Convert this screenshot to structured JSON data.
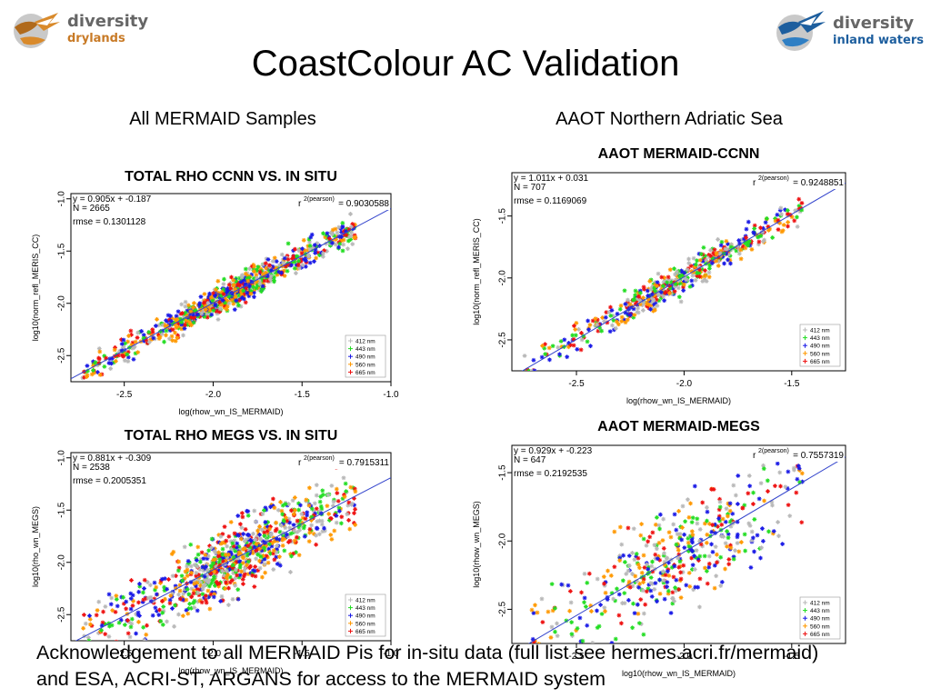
{
  "logos": {
    "left": {
      "line1": "diversity",
      "line2": "drylands"
    },
    "right": {
      "line1": "diversity",
      "line2": "inland waters"
    }
  },
  "title": "CoastColour AC Validation",
  "subheadings": {
    "left": "All MERMAID Samples",
    "right": "AAOT Northern Adriatic Sea"
  },
  "acknowledgement": {
    "line1": "Acknowledgement to all MERMAID Pis for in-situ data (full list see hermes.acri.fr/mermaid)",
    "line2": "and ESA, ACRI-ST, ARGANS for access to the MERMAID system"
  },
  "colors": {
    "412": "#b8b8b8",
    "443": "#22dd22",
    "490": "#1a1ae6",
    "560": "#ff9900",
    "665": "#ee1111",
    "fit": "#3344cc"
  },
  "chart_data": [
    {
      "type": "scatter",
      "title": "TOTAL RHO CCNN VS. IN SITU",
      "xlabel": "log(rhow_wn_IS_MERMAID)",
      "ylabel": "log10(norm_refl_MERIS_CC)",
      "xlim": [
        -2.8,
        -1.0
      ],
      "ylim": [
        -2.75,
        -0.95
      ],
      "xticks": [
        "-2.5",
        "-2.0",
        "-1.5",
        "-1.0"
      ],
      "yticks": [
        "-2.5",
        "-2.0",
        "-1.5",
        "-1.0"
      ],
      "fit_eq": "y = 0.905x + -0.187",
      "slope": 0.905,
      "intercept": -0.187,
      "n_label": "N = 2665",
      "n": 2665,
      "rmse_label": "rmse = 0.1301128",
      "rmse": 0.1301128,
      "r2_label": "r",
      "r2_sup": "2(pearson)",
      "r2_value": "= 0.9030588",
      "r2": 0.9030588,
      "legend": [
        "412 nm",
        "443 nm",
        "490 nm",
        "560 nm",
        "665 nm"
      ],
      "series_colors": [
        "#b8b8b8",
        "#22dd22",
        "#1a1ae6",
        "#ff9900",
        "#ee1111"
      ]
    },
    {
      "type": "scatter",
      "title": "AAOT MERMAID-CCNN",
      "xlabel": "log(rhow_wn_IS_MERMAID)",
      "ylabel": "log10(norm_refl_MERIS_CC)",
      "xlim": [
        -2.8,
        -1.25
      ],
      "ylim": [
        -2.75,
        -1.15
      ],
      "xticks": [
        "-2.5",
        "-2.0",
        "-1.5"
      ],
      "yticks": [
        "-2.5",
        "-2.0",
        "-1.5"
      ],
      "fit_eq": "y = 1.011x + 0.031",
      "slope": 1.011,
      "intercept": 0.031,
      "n_label": "N = 707",
      "n": 707,
      "rmse_label": "rmse = 0.1169069",
      "rmse": 0.1169069,
      "r2_label": "r",
      "r2_sup": "2(pearson)",
      "r2_value": "= 0.9248851",
      "r2": 0.9248851,
      "legend": [
        "412 nm",
        "443 nm",
        "490 nm",
        "560 nm",
        "665 nm"
      ],
      "series_colors": [
        "#b8b8b8",
        "#22dd22",
        "#1a1ae6",
        "#ff9900",
        "#ee1111"
      ]
    },
    {
      "type": "scatter",
      "title": "TOTAL RHO MEGS VS. IN SITU",
      "xlabel": "log(rhow_wn_IS_MERMAID)",
      "ylabel": "log10(rho_wn_MEGS)",
      "xlim": [
        -2.8,
        -1.0
      ],
      "ylim": [
        -2.75,
        -0.95
      ],
      "xticks": [
        "-2.5",
        "-2.0",
        "-1.5",
        "-1.0"
      ],
      "yticks": [
        "-2.5",
        "-2.0",
        "-1.5",
        "-1.0"
      ],
      "fit_eq": "y = 0.881x + -0.309",
      "slope": 0.881,
      "intercept": -0.309,
      "n_label": "N = 2538",
      "n": 2538,
      "rmse_label": "rmse = 0.2005351",
      "rmse": 0.2005351,
      "r2_label": "r",
      "r2_sup": "2(pearson)",
      "r2_value": "= 0.7915311",
      "r2": 0.7915311,
      "legend": [
        "412 nm",
        "443 nm",
        "490 nm",
        "560 nm",
        "665 nm"
      ],
      "series_colors": [
        "#b8b8b8",
        "#22dd22",
        "#1a1ae6",
        "#ff9900",
        "#ee1111"
      ]
    },
    {
      "type": "scatter",
      "title": "AAOT MERMAID-MEGS",
      "xlabel": "log10(rhow_wn_IS_MERMAID)",
      "ylabel": "log10(rhow_wn_MEGS)",
      "xlim": [
        -2.8,
        -1.25
      ],
      "ylim": [
        -2.75,
        -1.3
      ],
      "xticks": [
        "-2.5",
        "-2.0",
        "-1.5"
      ],
      "yticks": [
        "-2.5",
        "-2.0",
        "-1.5"
      ],
      "fit_eq": "y = 0.929x + -0.223",
      "slope": 0.929,
      "intercept": -0.223,
      "n_label": "N = 647",
      "n": 647,
      "rmse_label": "rmse = 0.2192535",
      "rmse": 0.2192535,
      "r2_label": "r",
      "r2_sup": "2(pearson)",
      "r2_value": "= 0.7557319",
      "r2": 0.7557319,
      "legend": [
        "412 nm",
        "443 nm",
        "490 nm",
        "560 nm",
        "665 nm"
      ],
      "series_colors": [
        "#b8b8b8",
        "#22dd22",
        "#1a1ae6",
        "#ff9900",
        "#ee1111"
      ]
    }
  ]
}
